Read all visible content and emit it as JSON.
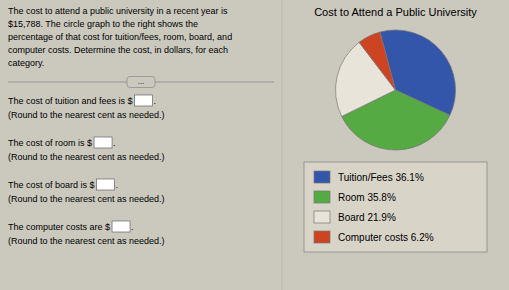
{
  "chart_data": {
    "type": "pie",
    "title": "Cost to Attend a Public University",
    "categories": [
      "Tuition/Fees 36.1%",
      "Room 35.8%",
      "Board 21.9%",
      "Computer costs 6.2%"
    ],
    "values": [
      36.1,
      35.8,
      21.9,
      6.2
    ],
    "colors": [
      "#3355aa",
      "#55aa44",
      "#e8e4da",
      "#cc4422"
    ],
    "legend": "bottom",
    "annotations": {
      "description": [
        "The cost to attend a public university in a recent year is",
        "$15,788. The circle graph to the right shows the",
        "percentage of that cost for tuition/fees, room, board, and",
        "computer costs. Determine the cost, in dollars, for each",
        "category."
      ],
      "button": "...",
      "questions": [
        "The cost of tuition and fees is $",
        "The cost of room is $",
        "The cost of board is $",
        "The computer costs are $"
      ],
      "period": ".",
      "note": "(Round to the nearest cent as needed.)"
    }
  }
}
